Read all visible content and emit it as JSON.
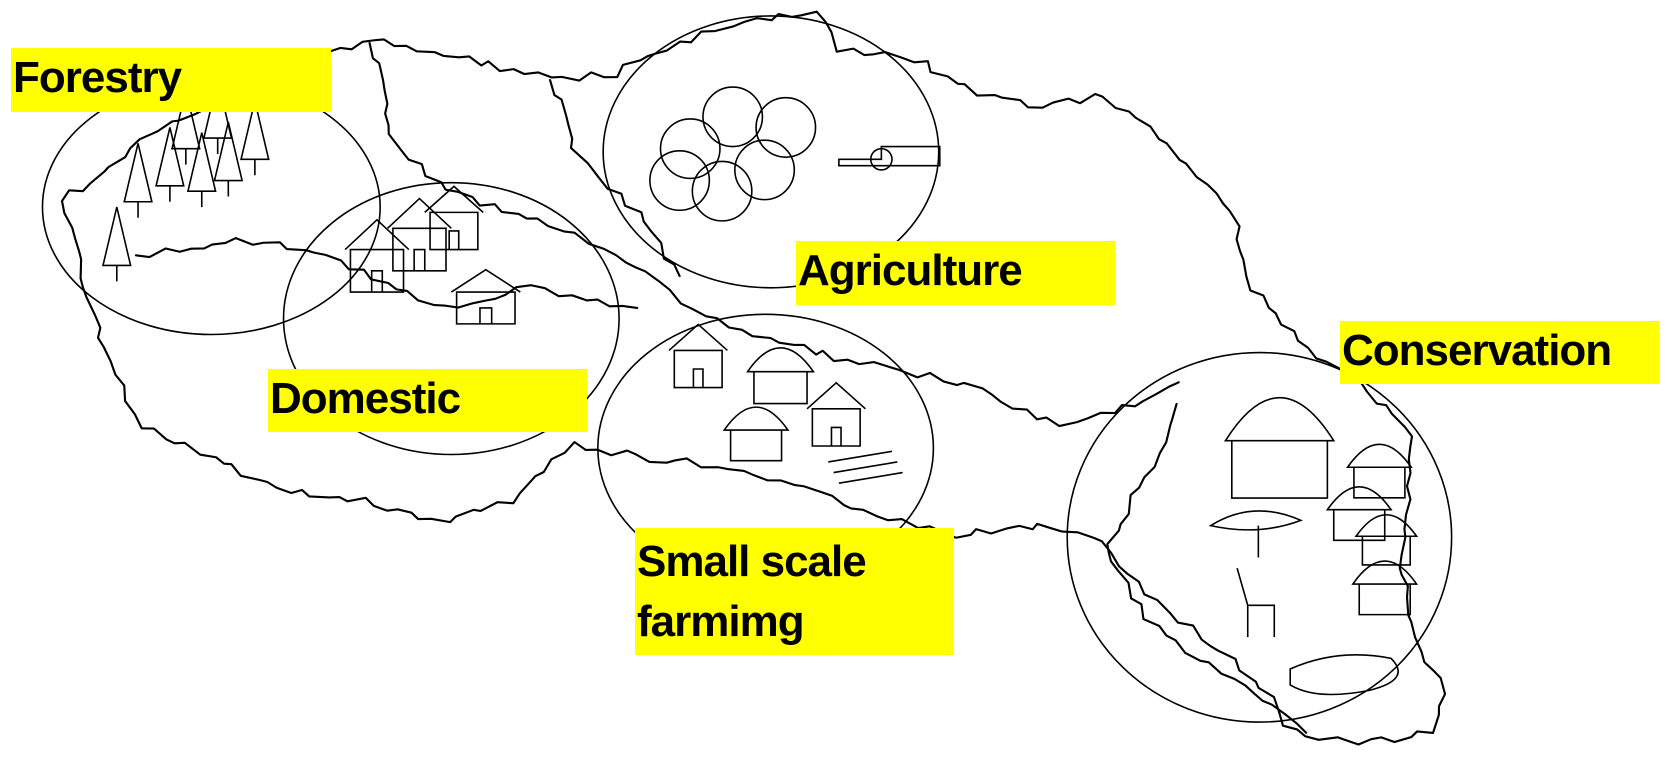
{
  "labels": {
    "forestry": "Forestry",
    "domestic": "Domestic",
    "agriculture": "Agriculture",
    "conservation": "Conservation",
    "small_scale_farming": "Small scale farmimg"
  }
}
